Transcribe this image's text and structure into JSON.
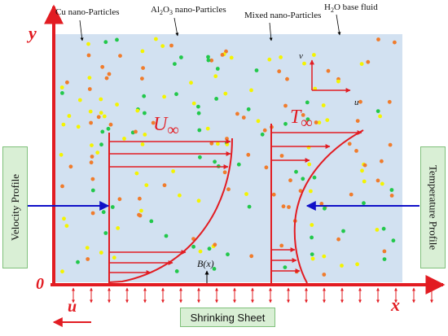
{
  "labels": {
    "cu": "Cu nano-Particles",
    "al2o3_prefix": "Al",
    "al2o3_sub1": "2",
    "al2o3_mid": "O",
    "al2o3_sub2": "3",
    "al2o3_suffix": " nano-Particles",
    "mixed": "Mixed nano-Particles",
    "h2o_prefix": "H",
    "h2o_sub": "2",
    "h2o_suffix": "O base fluid",
    "y_axis": "y",
    "x_axis": "x",
    "origin": "0",
    "u_bottom": "u",
    "u_inf_base": "U",
    "u_inf_sub": "∞",
    "t_inf_base": "T",
    "t_inf_sub": "∞",
    "bx": "B(x)",
    "mini_v": "v",
    "mini_u": "u",
    "velocity_profile": "Velocity  Profile",
    "temperature_profile": "Temperature  Profile",
    "shrinking_sheet": "Shrinking Sheet"
  },
  "colors": {
    "axis": "#e21c22",
    "fluid": "#d2e1f1",
    "green_box": "#d9efd5",
    "cu_particle": "#f07c2c",
    "al2o3_particle": "#f4f400",
    "mixed_particle": "#22c84b",
    "arrow_blue": "#1010c8"
  }
}
